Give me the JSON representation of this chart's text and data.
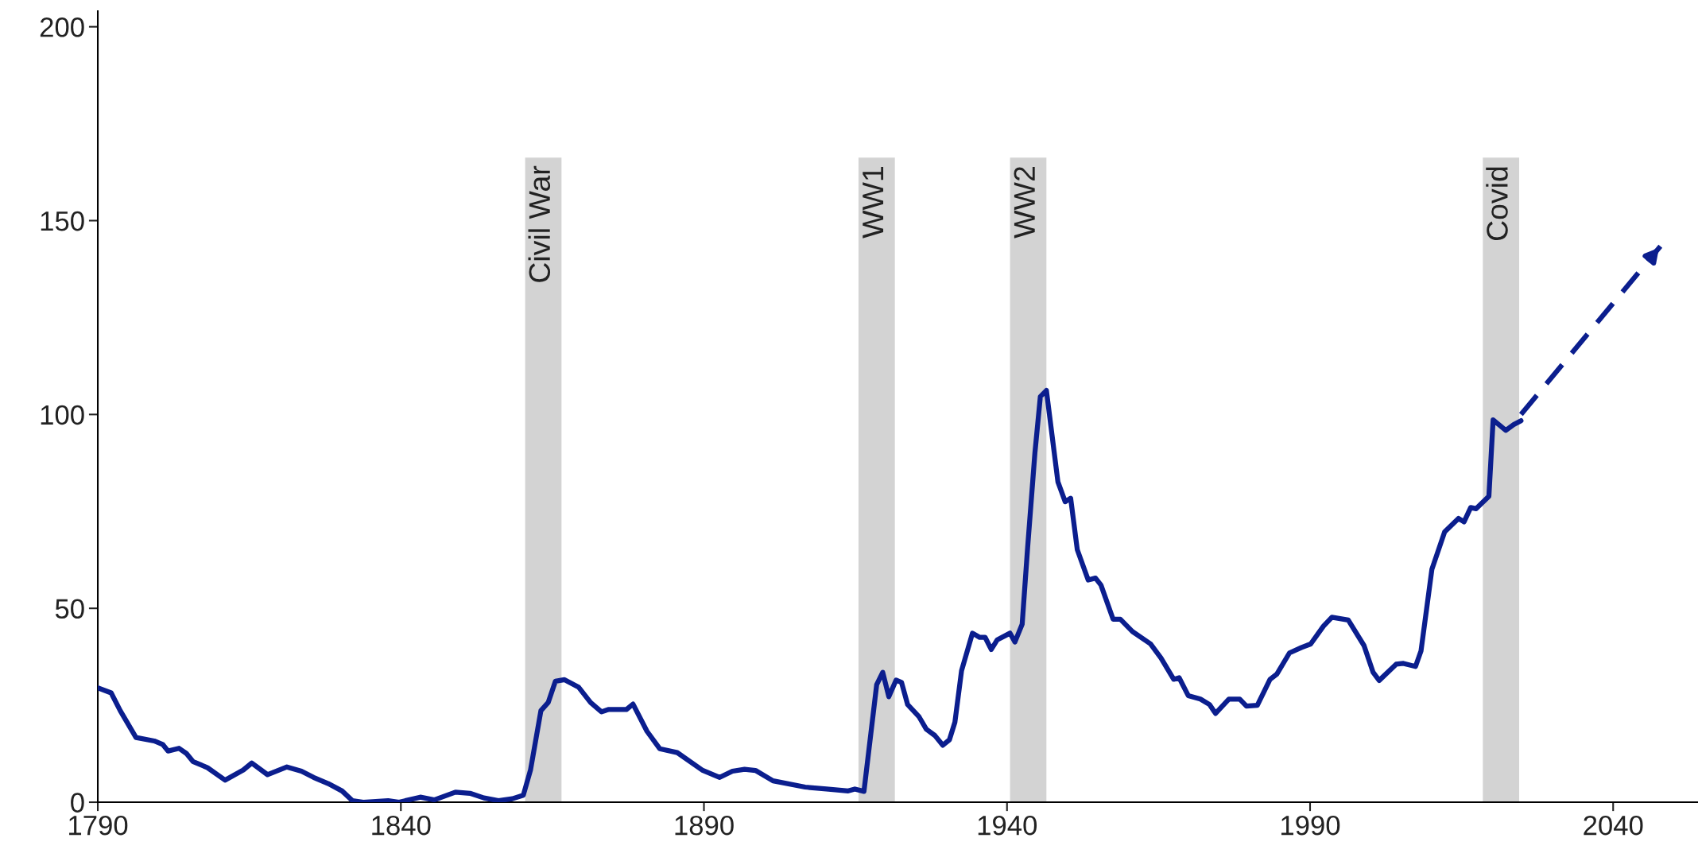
{
  "chart_data": {
    "type": "line",
    "series": [
      {
        "color": "#0b1e8e",
        "line_style": "solid",
        "x": [
          1790,
          1792.2,
          1793.7,
          1796.3,
          1799.3,
          1800.7,
          1801.6,
          1803.4,
          1804.6,
          1805.7,
          1808.1,
          1811,
          1814,
          1815.4,
          1818,
          1821.2,
          1823.6,
          1825.6,
          1828,
          1830.3,
          1832,
          1833.8,
          1837.9,
          1839.7,
          1843.2,
          1845.5,
          1849,
          1851.4,
          1853.7,
          1856.1,
          1858.4,
          1860.2,
          1861.4,
          1863.1,
          1864.3,
          1865.5,
          1867,
          1869.3,
          1871.3,
          1873.1,
          1874.2,
          1877.2,
          1878.3,
          1880.6,
          1882.7,
          1885.6,
          1889.7,
          1892.6,
          1894.7,
          1896.7,
          1898.5,
          1901.4,
          1906.7,
          1910.2,
          1913.8,
          1914.9,
          1916.4,
          1918.5,
          1919.5,
          1920.5,
          1921.7,
          1922.6,
          1923.6,
          1925.5,
          1926.7,
          1928.1,
          1929.4,
          1930.5,
          1931.4,
          1932.5,
          1934.3,
          1935.5,
          1936.4,
          1937.4,
          1938.4,
          1940.5,
          1941.3,
          1942.5,
          1943.4,
          1944.6,
          1945.5,
          1946.5,
          1948.4,
          1949.6,
          1950.5,
          1951.6,
          1953.4,
          1954.6,
          1955.5,
          1957.5,
          1958.7,
          1960.7,
          1963.7,
          1965.4,
          1967.5,
          1968.4,
          1969.9,
          1971.9,
          1973.4,
          1974.4,
          1976.6,
          1978.4,
          1979.5,
          1981.3,
          1983.4,
          1984.5,
          1986.6,
          1988.6,
          1990.1,
          1992.2,
          1993.6,
          1996.3,
          1998.9,
          2000.4,
          2001.4,
          2004.2,
          2005.4,
          2007.4,
          2008.3,
          2010.1,
          2012.2,
          2014.5,
          2015.4,
          2016.5,
          2017.4,
          2019.5,
          2020.2,
          2022.3,
          2023.6,
          2024.8
        ],
        "values": [
          29.5,
          28.2,
          23.6,
          16.7,
          15.8,
          14.9,
          13.2,
          13.9,
          12.6,
          10.5,
          8.9,
          5.7,
          8.3,
          10.1,
          7.1,
          9.1,
          8.0,
          6.4,
          4.8,
          2.9,
          0.4,
          0,
          0.4,
          0,
          1.3,
          0.6,
          2.6,
          2.3,
          1.1,
          0.4,
          0.9,
          1.8,
          8.4,
          23.6,
          25.7,
          31.2,
          31.6,
          29.7,
          25.7,
          23.3,
          23.9,
          23.9,
          25.3,
          18.3,
          13.8,
          12.8,
          8.3,
          6.4,
          8.0,
          8.5,
          8.2,
          5.5,
          3.9,
          3.4,
          2.9,
          3.4,
          2.8,
          30.3,
          33.5,
          27.2,
          31.5,
          30.9,
          25.2,
          22.0,
          18.8,
          17.2,
          14.7,
          16.1,
          20.6,
          33.9,
          43.6,
          42.5,
          42.5,
          39.4,
          41.9,
          43.6,
          41.3,
          45.9,
          65.6,
          90,
          104.6,
          106.2,
          82.6,
          77.5,
          78.4,
          65.1,
          57.3,
          57.8,
          56.0,
          47.2,
          47.2,
          44.0,
          40.8,
          37.2,
          31.7,
          32.1,
          27.5,
          26.6,
          25.2,
          22.9,
          26.6,
          26.6,
          24.8,
          25.0,
          31.7,
          33.0,
          38.5,
          39.9,
          40.8,
          45.4,
          47.7,
          47.0,
          40.4,
          33.5,
          31.4,
          35.6,
          35.8,
          35.0,
          39.0,
          60.1,
          69.7,
          73.2,
          72.3,
          76.0,
          75.7,
          78.9,
          98.6,
          95.9,
          97.4,
          98.4
        ]
      },
      {
        "color": "#0b1e8e",
        "line_style": "dashed",
        "x": [
          2024.8,
          2047.8
        ],
        "values": [
          100,
          143.4
        ]
      }
    ],
    "bands": [
      {
        "axis": "x",
        "from": 1860.5,
        "to": 1866.5,
        "label": "Civil War",
        "color": "#d3d3d3"
      },
      {
        "axis": "x",
        "from": 1915.5,
        "to": 1921.5,
        "label": "WW1",
        "color": "#d3d3d3"
      },
      {
        "axis": "x",
        "from": 1940.5,
        "to": 1946.5,
        "label": "WW2",
        "color": "#d3d3d3"
      },
      {
        "axis": "x",
        "from": 2018.5,
        "to": 2024.5,
        "label": "Covid",
        "color": "#d3d3d3"
      }
    ],
    "xlim": [
      1790,
      2054
    ],
    "xticks": [
      1790,
      1840,
      1890,
      1940,
      1990,
      2040
    ],
    "ylim": [
      0,
      204
    ],
    "yticks": [
      0,
      50,
      100,
      150,
      200
    ],
    "grid": false,
    "legend": false
  }
}
